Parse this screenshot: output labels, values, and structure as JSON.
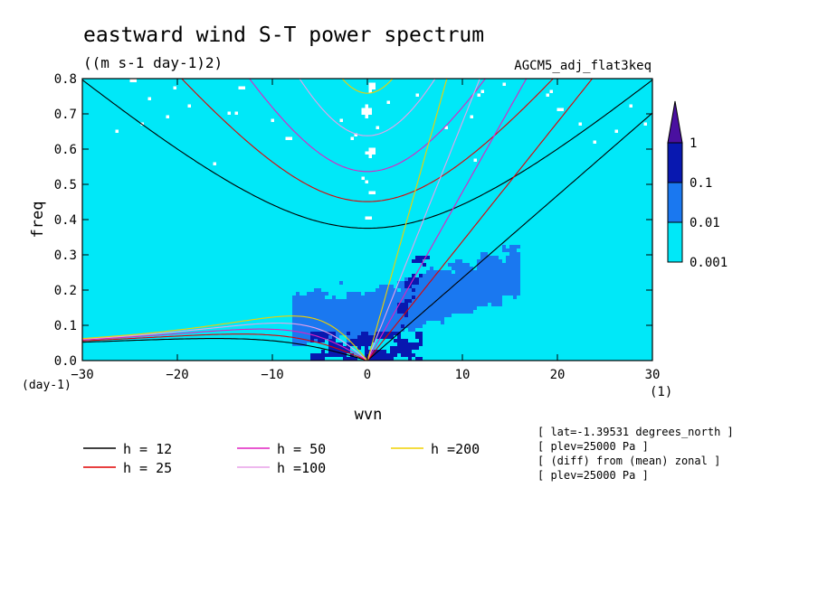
{
  "chart_data": {
    "type": "heatmap",
    "title": "eastward wind S-T power spectrum",
    "units": "((m s-1 day-1)2)",
    "model_label": "AGCM5_adj_flat3keq",
    "xlabel": "wvn",
    "ylabel": "freq",
    "x_unit": "(1)",
    "y_unit": "(day-1)",
    "xlim": [
      -30,
      30
    ],
    "ylim": [
      0,
      0.8
    ],
    "x_ticks": [
      -30,
      -20,
      -10,
      0,
      10,
      20,
      30
    ],
    "y_ticks": [
      0.0,
      0.1,
      0.2,
      0.3,
      0.4,
      0.5,
      0.6,
      0.7,
      0.8
    ],
    "y_tick_labels": [
      "0.0",
      "0.1",
      "0.2",
      "0.3",
      "0.4",
      "0.5",
      "0.6",
      "0.7",
      "0.8"
    ],
    "colorbar": {
      "levels": [
        0.001,
        0.01,
        0.1,
        1
      ],
      "labels": [
        "0.001",
        "0.01",
        "0.1",
        "1"
      ],
      "colors": [
        "#00e8f8",
        "#1a78f0",
        "#0818b0",
        "#4a10a0"
      ]
    },
    "dispersion_curves": [
      {
        "name": "h = 12",
        "h": 12,
        "color": "#000000"
      },
      {
        "name": "h = 25",
        "h": 25,
        "color": "#e00000"
      },
      {
        "name": "h = 50",
        "h": 50,
        "color": "#e020c0"
      },
      {
        "name": "h =100",
        "h": 100,
        "color": "#e8a0e8"
      },
      {
        "name": "h =200",
        "h": 200,
        "color": "#f0d000"
      }
    ],
    "info": [
      "[ lat=-1.39531 degrees_north ]",
      "[ plev=25000 Pa ]",
      "[ (diff) from (mean) zonal ]",
      "[ plev=25000 Pa ]"
    ]
  }
}
